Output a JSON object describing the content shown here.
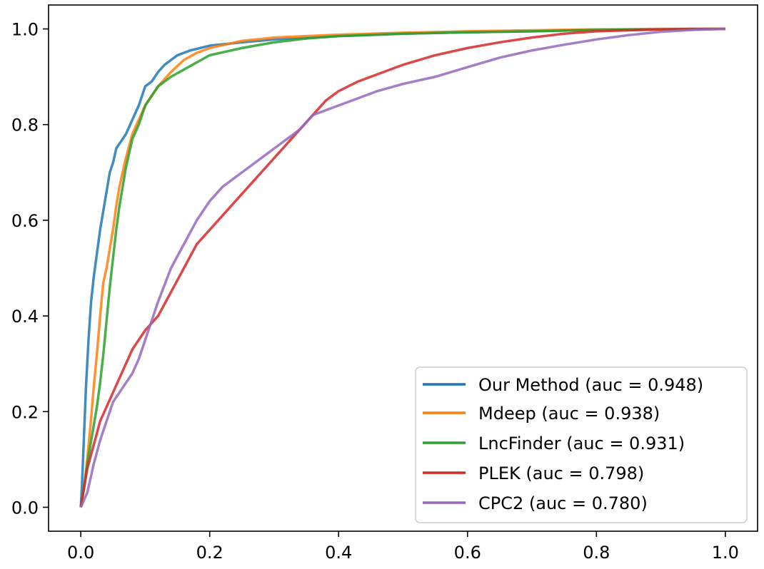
{
  "chart_data": {
    "type": "line",
    "title": "",
    "xlabel": "",
    "ylabel": "",
    "xlim": [
      -0.05,
      1.05
    ],
    "ylim": [
      -0.05,
      1.05
    ],
    "xticks": [
      0.0,
      0.2,
      0.4,
      0.6,
      0.8,
      1.0
    ],
    "yticks": [
      0.0,
      0.2,
      0.4,
      0.6,
      0.8,
      1.0
    ],
    "xtick_labels": [
      "0.0",
      "0.2",
      "0.4",
      "0.6",
      "0.8",
      "1.0"
    ],
    "ytick_labels": [
      "0.0",
      "0.2",
      "0.4",
      "0.6",
      "0.8",
      "1.0"
    ],
    "grid": false,
    "legend_position": "bottom-right",
    "series": [
      {
        "name": "Our Method (auc = 0.948)",
        "color": "#1f77b4",
        "x": [
          0,
          0.002,
          0.005,
          0.008,
          0.012,
          0.016,
          0.02,
          0.025,
          0.03,
          0.035,
          0.04,
          0.045,
          0.05,
          0.055,
          0.06,
          0.07,
          0.08,
          0.09,
          0.1,
          0.11,
          0.12,
          0.13,
          0.15,
          0.17,
          0.2,
          0.25,
          0.3,
          0.4,
          0.5,
          0.6,
          0.7,
          0.8,
          0.9,
          1.0
        ],
        "y": [
          0,
          0.05,
          0.15,
          0.25,
          0.35,
          0.43,
          0.48,
          0.53,
          0.58,
          0.62,
          0.66,
          0.7,
          0.72,
          0.75,
          0.76,
          0.78,
          0.81,
          0.84,
          0.88,
          0.89,
          0.91,
          0.925,
          0.945,
          0.955,
          0.965,
          0.972,
          0.978,
          0.985,
          0.99,
          0.993,
          0.995,
          0.998,
          0.999,
          1.0
        ]
      },
      {
        "name": "Mdeep (auc = 0.938)",
        "color": "#ff7f0e",
        "x": [
          0,
          0.005,
          0.01,
          0.015,
          0.02,
          0.025,
          0.03,
          0.035,
          0.04,
          0.045,
          0.05,
          0.055,
          0.06,
          0.065,
          0.07,
          0.08,
          0.09,
          0.1,
          0.12,
          0.14,
          0.16,
          0.18,
          0.2,
          0.25,
          0.3,
          0.4,
          0.5,
          0.6,
          0.7,
          0.8,
          0.9,
          1.0
        ],
        "y": [
          0,
          0.04,
          0.1,
          0.17,
          0.25,
          0.32,
          0.4,
          0.47,
          0.5,
          0.54,
          0.58,
          0.63,
          0.67,
          0.7,
          0.73,
          0.78,
          0.81,
          0.84,
          0.88,
          0.91,
          0.935,
          0.95,
          0.96,
          0.975,
          0.982,
          0.988,
          0.992,
          0.995,
          0.997,
          0.999,
          1.0,
          1.0
        ]
      },
      {
        "name": "LncFinder (auc = 0.931)",
        "color": "#2ca02c",
        "x": [
          0,
          0.005,
          0.01,
          0.015,
          0.02,
          0.025,
          0.03,
          0.035,
          0.04,
          0.045,
          0.05,
          0.055,
          0.06,
          0.065,
          0.07,
          0.08,
          0.09,
          0.1,
          0.12,
          0.14,
          0.16,
          0.18,
          0.2,
          0.25,
          0.3,
          0.35,
          0.4,
          0.5,
          0.6,
          0.7,
          0.8,
          0.9,
          1.0
        ],
        "y": [
          0,
          0.04,
          0.09,
          0.13,
          0.17,
          0.21,
          0.26,
          0.32,
          0.39,
          0.46,
          0.52,
          0.58,
          0.63,
          0.67,
          0.71,
          0.77,
          0.8,
          0.84,
          0.88,
          0.9,
          0.915,
          0.93,
          0.945,
          0.96,
          0.972,
          0.98,
          0.985,
          0.99,
          0.993,
          0.995,
          0.998,
          0.999,
          1.0
        ]
      },
      {
        "name": "PLEK (auc = 0.798)",
        "color": "#d62728",
        "x": [
          0,
          0.01,
          0.02,
          0.03,
          0.04,
          0.05,
          0.06,
          0.07,
          0.08,
          0.09,
          0.1,
          0.12,
          0.14,
          0.16,
          0.18,
          0.2,
          0.22,
          0.24,
          0.26,
          0.28,
          0.3,
          0.32,
          0.34,
          0.36,
          0.38,
          0.4,
          0.43,
          0.46,
          0.5,
          0.55,
          0.6,
          0.65,
          0.7,
          0.75,
          0.8,
          0.85,
          0.9,
          0.95,
          1.0
        ],
        "y": [
          0,
          0.08,
          0.13,
          0.18,
          0.21,
          0.24,
          0.27,
          0.3,
          0.33,
          0.35,
          0.37,
          0.4,
          0.45,
          0.5,
          0.55,
          0.58,
          0.61,
          0.64,
          0.67,
          0.7,
          0.73,
          0.76,
          0.79,
          0.82,
          0.85,
          0.87,
          0.89,
          0.905,
          0.925,
          0.945,
          0.96,
          0.972,
          0.982,
          0.99,
          0.995,
          0.997,
          0.999,
          1.0,
          1.0
        ]
      },
      {
        "name": "CPC2 (auc = 0.780)",
        "color": "#9467bd",
        "x": [
          0,
          0.01,
          0.02,
          0.03,
          0.04,
          0.05,
          0.06,
          0.07,
          0.08,
          0.09,
          0.1,
          0.12,
          0.14,
          0.16,
          0.18,
          0.2,
          0.22,
          0.24,
          0.26,
          0.28,
          0.3,
          0.32,
          0.34,
          0.36,
          0.38,
          0.4,
          0.43,
          0.46,
          0.5,
          0.55,
          0.6,
          0.65,
          0.7,
          0.75,
          0.8,
          0.85,
          0.9,
          0.95,
          1.0
        ],
        "y": [
          0,
          0.03,
          0.09,
          0.14,
          0.18,
          0.22,
          0.24,
          0.26,
          0.28,
          0.31,
          0.35,
          0.43,
          0.5,
          0.55,
          0.6,
          0.64,
          0.67,
          0.69,
          0.71,
          0.73,
          0.75,
          0.77,
          0.79,
          0.82,
          0.83,
          0.84,
          0.855,
          0.87,
          0.885,
          0.9,
          0.92,
          0.94,
          0.955,
          0.967,
          0.978,
          0.987,
          0.994,
          0.998,
          1.0
        ]
      }
    ]
  }
}
